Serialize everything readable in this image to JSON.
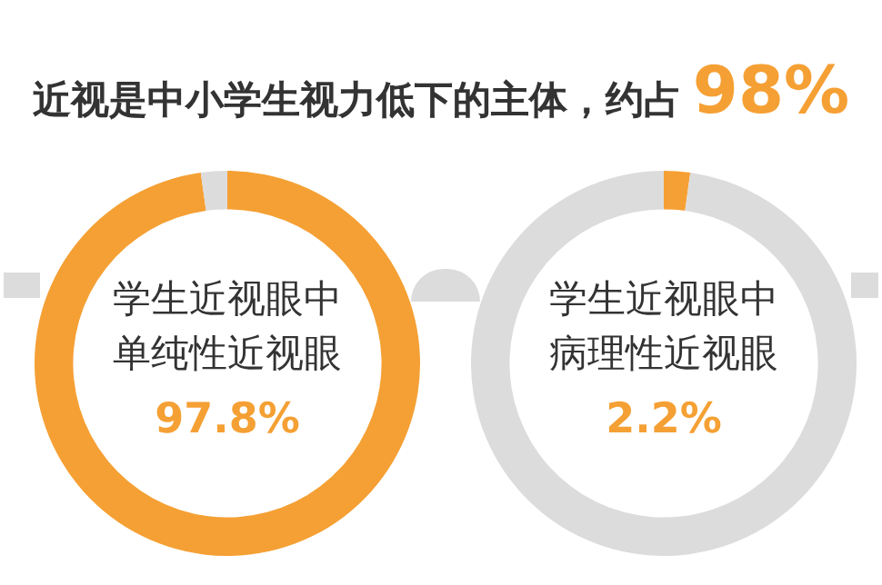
{
  "chart_data": [
    {
      "type": "donut",
      "title": "近视是中小学生视力低下的主体，约占 98%",
      "categories": [
        "学生近视眼中单纯性近视眼",
        null
      ],
      "values": [
        97.8,
        2.2
      ],
      "colors": [
        "#f5a034",
        "#dcdcdc"
      ],
      "value_labels": [
        "97.8%",
        null
      ],
      "legend": false
    },
    {
      "type": "donut",
      "categories": [
        "学生近视眼中病理性近视眼",
        null
      ],
      "values": [
        2.2,
        97.8
      ],
      "colors": [
        "#f5a034",
        "#dcdcdc"
      ],
      "value_labels": [
        "2.2%",
        null
      ],
      "legend": false
    }
  ]
}
